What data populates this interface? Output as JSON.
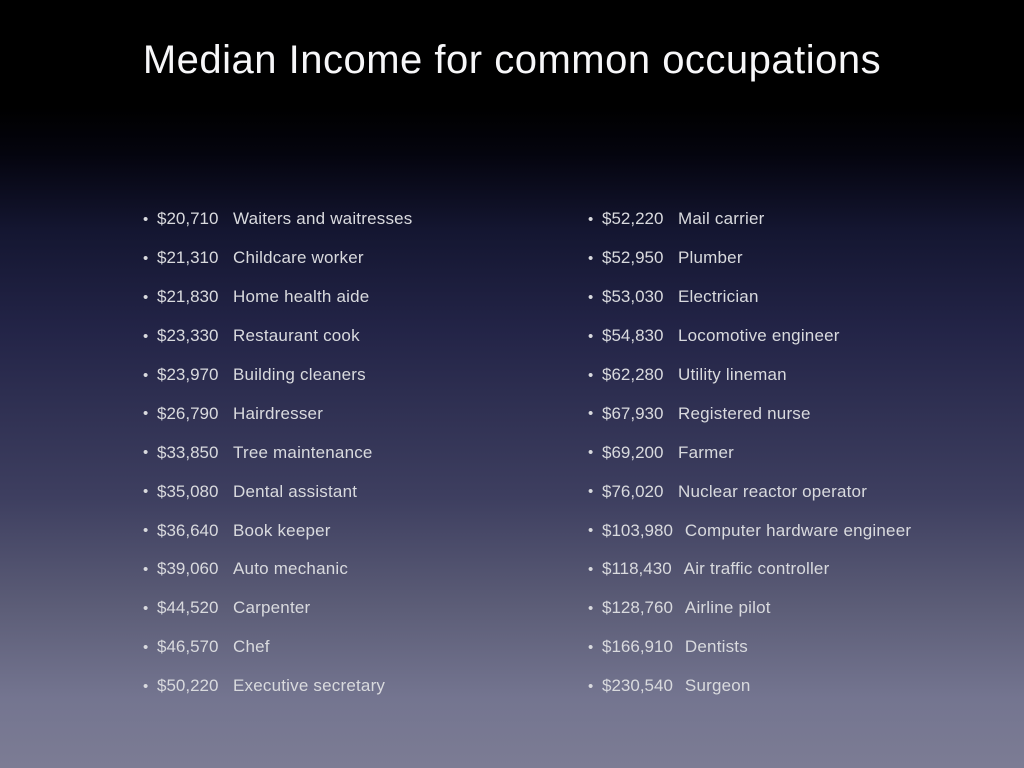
{
  "slide": {
    "title": "Median Income for common occupations",
    "colors": {
      "background_top": "#000000",
      "background_middle": "#232447",
      "background_bottom": "#7c7c94",
      "title_text": "#f7f7f9",
      "list_text": "#d9dade"
    }
  },
  "columns": {
    "left": [
      {
        "amount": "$20,710",
        "occupation": "Waiters and waitresses"
      },
      {
        "amount": "$21,310",
        "occupation": "Childcare worker"
      },
      {
        "amount": "$21,830",
        "occupation": "Home health aide"
      },
      {
        "amount": "$23,330",
        "occupation": "Restaurant cook"
      },
      {
        "amount": "$23,970",
        "occupation": "Building cleaners"
      },
      {
        "amount": "$26,790",
        "occupation": "Hairdresser"
      },
      {
        "amount": "$33,850",
        "occupation": "Tree maintenance"
      },
      {
        "amount": "$35,080",
        "occupation": "Dental assistant"
      },
      {
        "amount": "$36,640",
        "occupation": "Book keeper"
      },
      {
        "amount": "$39,060",
        "occupation": "Auto mechanic"
      },
      {
        "amount": "$44,520",
        "occupation": "Carpenter"
      },
      {
        "amount": "$46,570",
        "occupation": "Chef"
      },
      {
        "amount": "$50,220",
        "occupation": "Executive secretary"
      }
    ],
    "right": [
      {
        "amount": "$52,220",
        "occupation": "Mail carrier"
      },
      {
        "amount": "$52,950",
        "occupation": "Plumber"
      },
      {
        "amount": "$53,030",
        "occupation": "Electrician"
      },
      {
        "amount": "$54,830",
        "occupation": "Locomotive engineer"
      },
      {
        "amount": "$62,280",
        "occupation": "Utility lineman"
      },
      {
        "amount": "$67,930",
        "occupation": "Registered nurse"
      },
      {
        "amount": "$69,200",
        "occupation": "Farmer"
      },
      {
        "amount": "$76,020",
        "occupation": "Nuclear reactor operator"
      },
      {
        "amount": "$103,980",
        "occupation": "Computer hardware engineer"
      },
      {
        "amount": "$118,430",
        "occupation": "Air traffic controller"
      },
      {
        "amount": "$128,760",
        "occupation": "Airline pilot"
      },
      {
        "amount": "$166,910",
        "occupation": "Dentists"
      },
      {
        "amount": "$230,540",
        "occupation": "Surgeon"
      }
    ]
  }
}
